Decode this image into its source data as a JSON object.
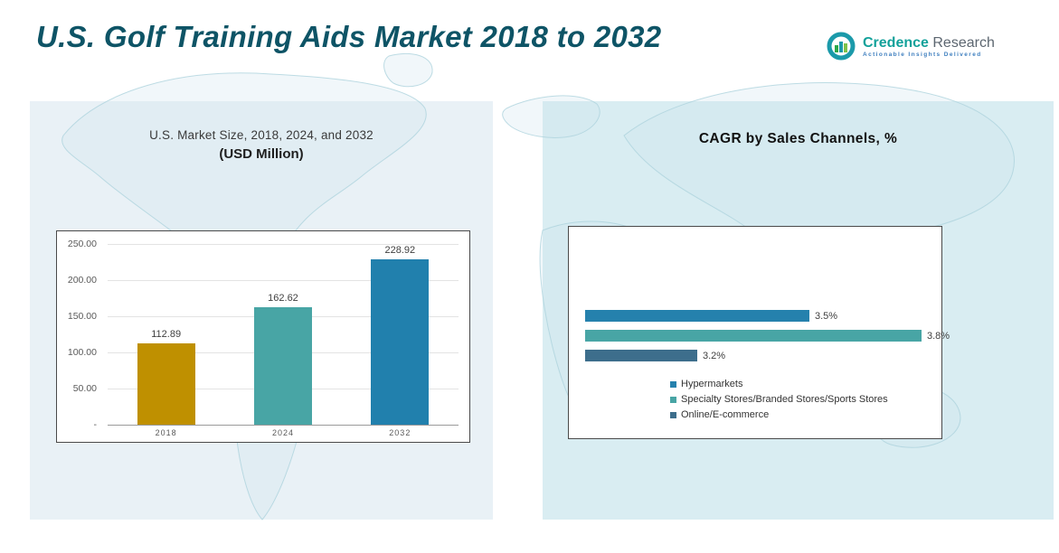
{
  "header": {
    "title": "U.S. Golf Training Aids Market 2018 to 2032"
  },
  "logo": {
    "name_part1": "Credence",
    "name_part2": "Research",
    "tagline": "Actionable Insights Delivered"
  },
  "left_panel": {
    "title_line1": "U.S. Market Size, 2018, 2024, and 2032",
    "title_line2": "(USD Million)"
  },
  "right_panel": {
    "title": "CAGR by Sales Channels, %"
  },
  "chart_data": [
    {
      "type": "bar",
      "title": "U.S. Market Size, 2018, 2024, and 2032 (USD Million)",
      "categories": [
        "2018",
        "2024",
        "2032"
      ],
      "values": [
        112.89,
        162.62,
        228.92
      ],
      "value_labels": [
        "112.89",
        "162.62",
        "228.92"
      ],
      "bar_colors": [
        "#bf9000",
        "#48a5a5",
        "#2180ad"
      ],
      "ylim": [
        0,
        250
      ],
      "ytick_step": 50,
      "ytick_labels": [
        "250.00",
        "200.00",
        "150.00",
        "100.00",
        "50.00",
        "-"
      ],
      "grid": true,
      "legend": false
    },
    {
      "type": "bar",
      "orientation": "horizontal",
      "title": "CAGR by Sales Channels, %",
      "categories": [
        "Hypermarkets",
        "Specialty Stores/Branded Stores/Sports Stores",
        "Online/E-commerce"
      ],
      "values": [
        3.5,
        3.8,
        3.2
      ],
      "value_labels": [
        "3.5%",
        "3.8%",
        "3.2%"
      ],
      "bar_colors": [
        "#2581ad",
        "#48a5a5",
        "#3d6e8c"
      ],
      "xlim": [
        2.9,
        3.8
      ],
      "grid": false,
      "legend_position": "bottom"
    }
  ],
  "colors": {
    "title_text": "#0e5466",
    "left_panel_bg": "#e9f1f6",
    "right_panel_bg": "#d9edf2"
  }
}
